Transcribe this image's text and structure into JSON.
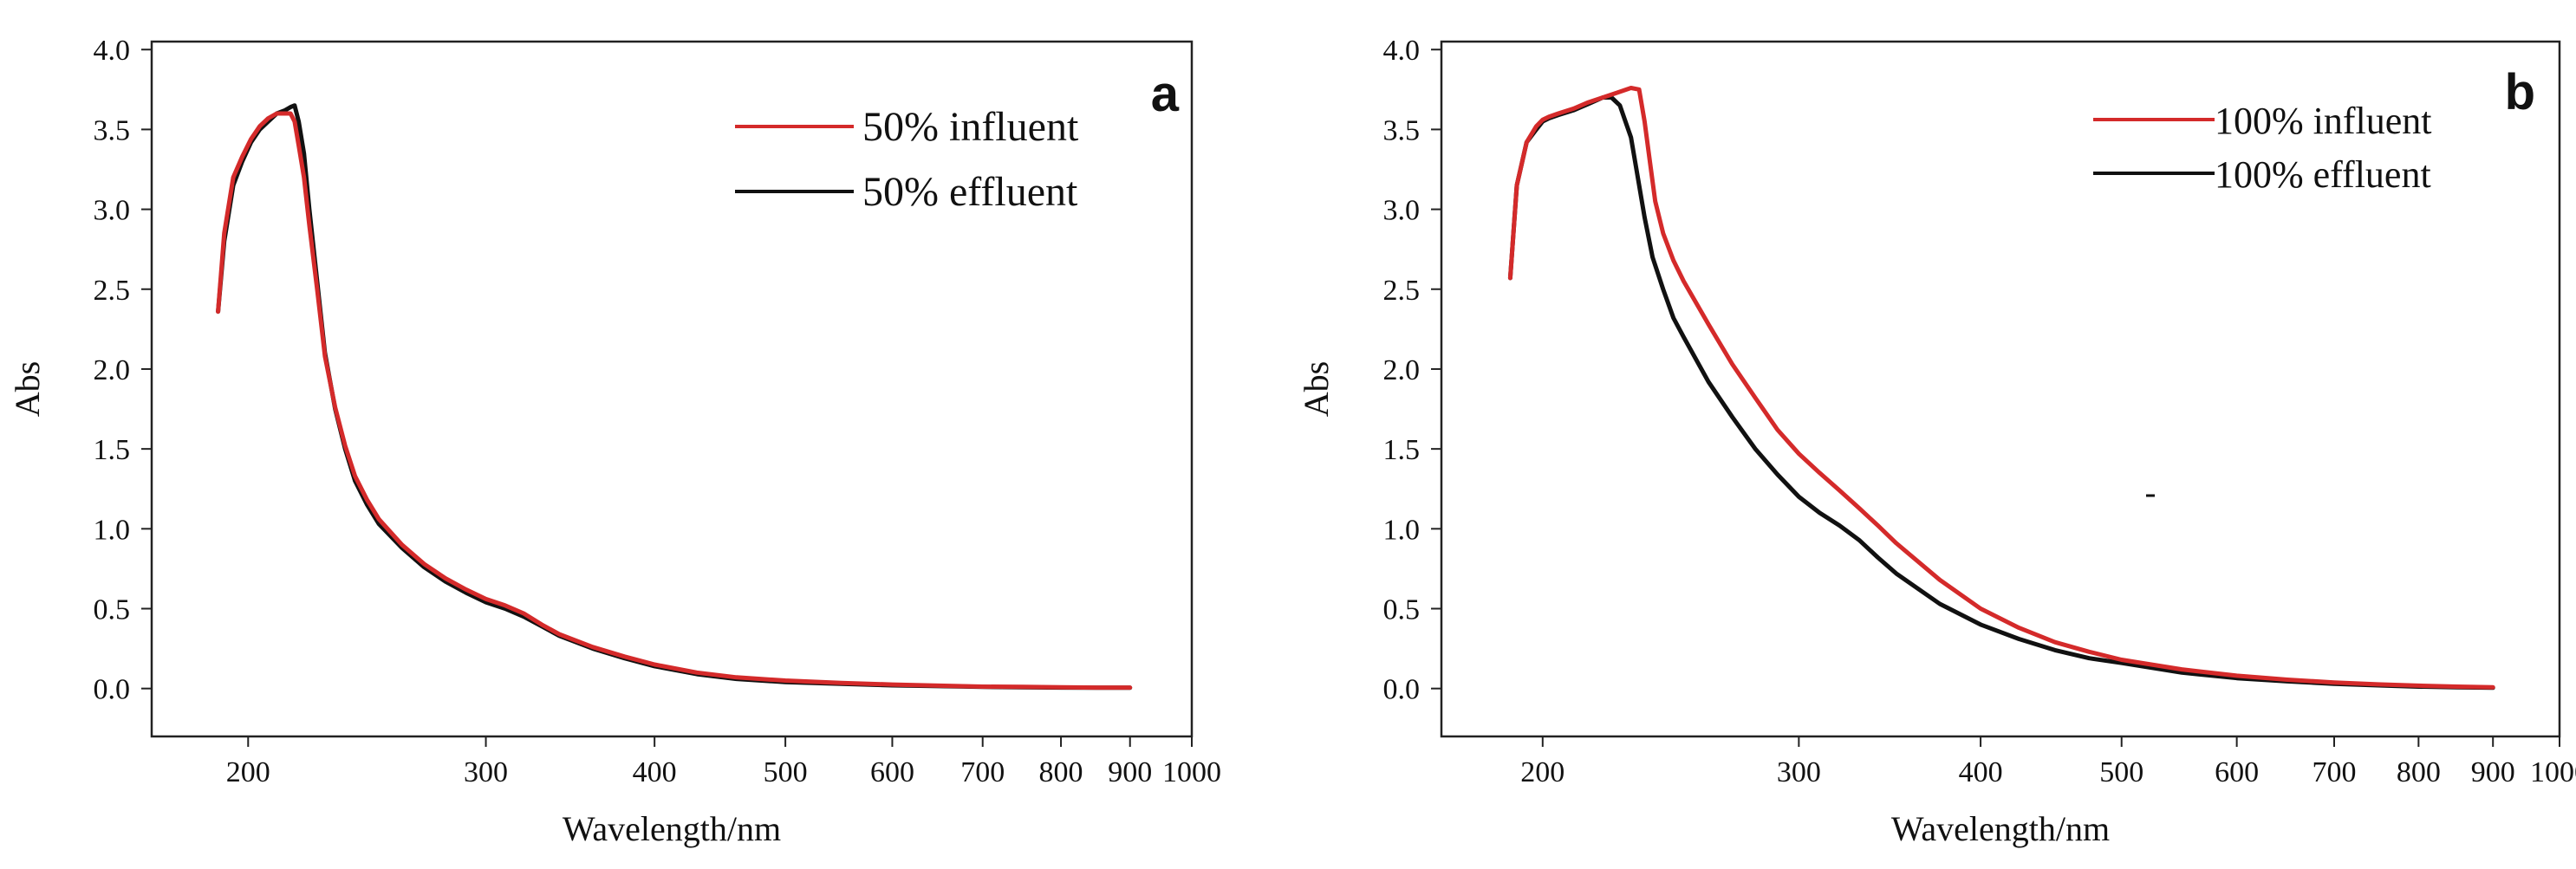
{
  "chart_data": [
    {
      "type": "line",
      "panel_label": "a",
      "xlabel": "Wavelength/nm",
      "ylabel": "Abs",
      "x_scale": "log",
      "xlim": [
        180,
        1000
      ],
      "ylim": [
        -0.3,
        4.05
      ],
      "x_ticks": [
        {
          "value": 200,
          "label": "200"
        },
        {
          "value": 300,
          "label": "300"
        },
        {
          "value": 400,
          "label": "400"
        },
        {
          "value": 500,
          "label": "500"
        },
        {
          "value": 600,
          "label": "600"
        },
        {
          "value": 700,
          "label": "700"
        },
        {
          "value": 800,
          "label": "800"
        },
        {
          "value": 900,
          "label": "900"
        },
        {
          "value": 1000,
          "label": "1000"
        }
      ],
      "y_ticks": [
        {
          "value": 0.0,
          "label": "0.0"
        },
        {
          "value": 0.5,
          "label": "0.5"
        },
        {
          "value": 1.0,
          "label": "1.0"
        },
        {
          "value": 1.5,
          "label": "1.5"
        },
        {
          "value": 2.0,
          "label": "2.0"
        },
        {
          "value": 2.5,
          "label": "2.5"
        },
        {
          "value": 3.0,
          "label": "3.0"
        },
        {
          "value": 3.5,
          "label": "3.5"
        },
        {
          "value": 4.0,
          "label": "4.0"
        }
      ],
      "legend_position": "top-right",
      "series": [
        {
          "name": "50% effluent",
          "color": "#111111",
          "x": [
            190,
            192,
            195,
            198,
            201,
            204,
            207,
            210,
            213,
            215,
            216.5,
            218,
            220,
            222,
            225,
            228,
            232,
            236,
            240,
            245,
            250,
            260,
            270,
            280,
            290,
            300,
            310,
            320,
            330,
            340,
            360,
            380,
            400,
            430,
            460,
            500,
            550,
            600,
            650,
            700,
            750,
            800,
            850,
            900
          ],
          "y": [
            2.36,
            2.8,
            3.15,
            3.3,
            3.42,
            3.5,
            3.55,
            3.6,
            3.62,
            3.64,
            3.65,
            3.55,
            3.35,
            3.0,
            2.55,
            2.1,
            1.75,
            1.5,
            1.3,
            1.15,
            1.03,
            0.88,
            0.76,
            0.67,
            0.6,
            0.54,
            0.5,
            0.45,
            0.39,
            0.33,
            0.25,
            0.19,
            0.14,
            0.09,
            0.06,
            0.04,
            0.03,
            0.02,
            0.015,
            0.01,
            0.008,
            0.006,
            0.005,
            0.005
          ]
        },
        {
          "name": "50% influent",
          "color": "#d42a2a",
          "x": [
            190,
            192,
            195,
            198,
            201,
            204,
            207,
            210,
            213,
            215,
            216.5,
            218,
            220,
            222,
            225,
            228,
            232,
            236,
            240,
            245,
            250,
            260,
            270,
            280,
            290,
            300,
            310,
            320,
            330,
            340,
            360,
            380,
            400,
            430,
            460,
            500,
            550,
            600,
            650,
            700,
            750,
            800,
            850,
            900
          ],
          "y": [
            2.36,
            2.85,
            3.2,
            3.33,
            3.44,
            3.52,
            3.57,
            3.6,
            3.6,
            3.6,
            3.55,
            3.4,
            3.2,
            2.9,
            2.5,
            2.08,
            1.76,
            1.52,
            1.33,
            1.18,
            1.06,
            0.9,
            0.78,
            0.69,
            0.62,
            0.56,
            0.52,
            0.47,
            0.4,
            0.34,
            0.26,
            0.2,
            0.15,
            0.1,
            0.07,
            0.05,
            0.035,
            0.025,
            0.018,
            0.012,
            0.01,
            0.008,
            0.006,
            0.006
          ]
        }
      ]
    },
    {
      "type": "line",
      "panel_label": "b",
      "xlabel": "Wavelength/nm",
      "ylabel": "Abs",
      "x_scale": "log",
      "xlim": [
        180,
        1000
      ],
      "ylim": [
        -0.3,
        4.05
      ],
      "x_ticks": [
        {
          "value": 200,
          "label": "200"
        },
        {
          "value": 300,
          "label": "300"
        },
        {
          "value": 400,
          "label": "400"
        },
        {
          "value": 500,
          "label": "500"
        },
        {
          "value": 600,
          "label": "600"
        },
        {
          "value": 700,
          "label": "700"
        },
        {
          "value": 800,
          "label": "800"
        },
        {
          "value": 900,
          "label": "900"
        },
        {
          "value": 1000,
          "label": "1000"
        }
      ],
      "y_ticks": [
        {
          "value": 0.0,
          "label": "0.0"
        },
        {
          "value": 0.5,
          "label": "0.5"
        },
        {
          "value": 1.0,
          "label": "1.0"
        },
        {
          "value": 1.5,
          "label": "1.5"
        },
        {
          "value": 2.0,
          "label": "2.0"
        },
        {
          "value": 2.5,
          "label": "2.5"
        },
        {
          "value": 3.0,
          "label": "3.0"
        },
        {
          "value": 3.5,
          "label": "3.5"
        },
        {
          "value": 4.0,
          "label": "4.0"
        }
      ],
      "legend_position": "top-right",
      "series": [
        {
          "name": "100% effluent",
          "color": "#111111",
          "x": [
            190,
            192,
            195,
            198,
            200,
            202,
            205,
            210,
            215,
            220,
            223,
            226,
            228,
            230,
            232,
            235,
            238,
            242,
            246,
            250,
            260,
            270,
            280,
            290,
            300,
            310,
            320,
            330,
            340,
            350,
            375,
            400,
            425,
            450,
            475,
            500,
            550,
            600,
            650,
            700,
            750,
            800,
            850,
            900
          ],
          "y": [
            2.57,
            3.15,
            3.42,
            3.5,
            3.55,
            3.57,
            3.59,
            3.62,
            3.66,
            3.7,
            3.7,
            3.65,
            3.55,
            3.45,
            3.25,
            2.95,
            2.7,
            2.5,
            2.32,
            2.2,
            1.92,
            1.7,
            1.5,
            1.34,
            1.2,
            1.1,
            1.02,
            0.93,
            0.82,
            0.72,
            0.53,
            0.4,
            0.31,
            0.24,
            0.19,
            0.16,
            0.1,
            0.065,
            0.045,
            0.03,
            0.02,
            0.012,
            0.008,
            0.005
          ]
        },
        {
          "name": "100% influent",
          "color": "#d42a2a",
          "x": [
            190,
            192,
            195,
            198,
            200,
            202,
            205,
            210,
            215,
            220,
            225,
            230,
            233,
            235,
            237,
            239,
            242,
            246,
            250,
            260,
            270,
            280,
            290,
            300,
            310,
            320,
            330,
            340,
            350,
            375,
            400,
            425,
            450,
            475,
            500,
            550,
            600,
            650,
            700,
            750,
            800,
            850,
            900
          ],
          "y": [
            2.57,
            3.15,
            3.42,
            3.52,
            3.56,
            3.58,
            3.6,
            3.63,
            3.67,
            3.7,
            3.73,
            3.76,
            3.75,
            3.55,
            3.3,
            3.05,
            2.85,
            2.68,
            2.55,
            2.28,
            2.03,
            1.82,
            1.62,
            1.47,
            1.35,
            1.24,
            1.13,
            1.02,
            0.91,
            0.68,
            0.5,
            0.38,
            0.29,
            0.23,
            0.18,
            0.12,
            0.08,
            0.055,
            0.038,
            0.026,
            0.018,
            0.012,
            0.008
          ]
        }
      ]
    }
  ]
}
